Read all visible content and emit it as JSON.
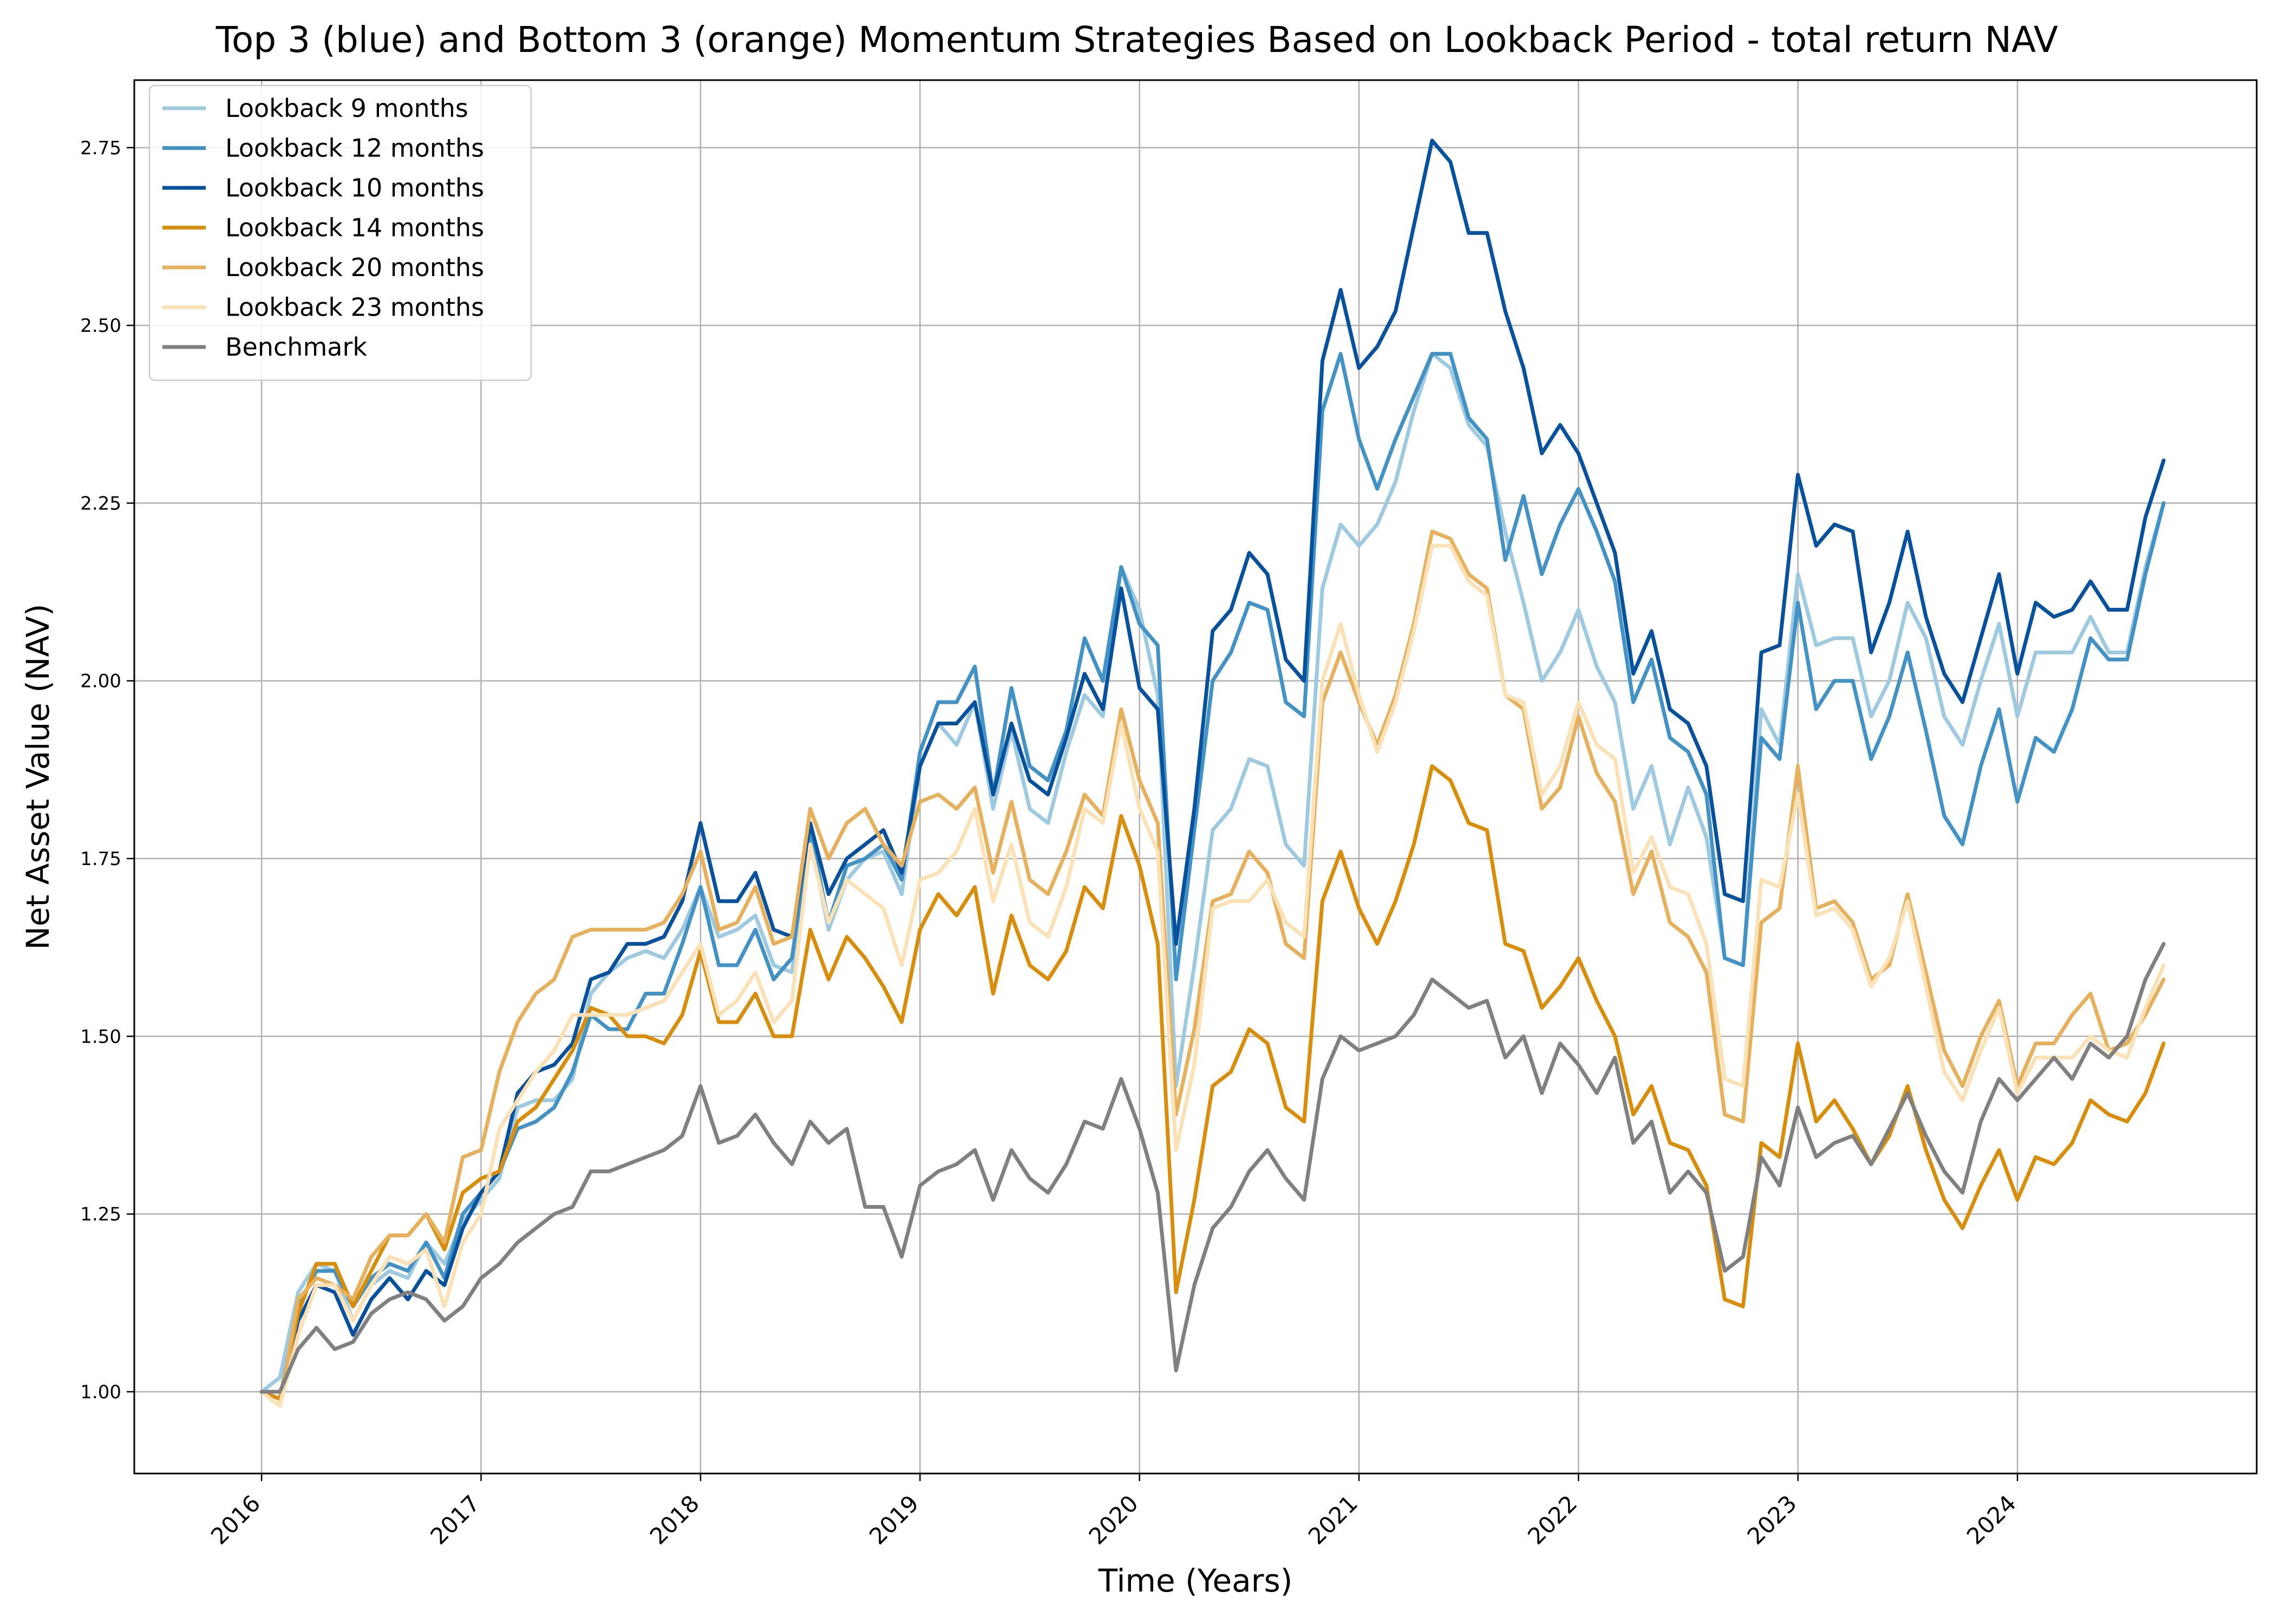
{
  "chart_data": {
    "type": "line",
    "title": "Top 3 (blue) and Bottom 3 (orange) Momentum Strategies Based on Lookback Period - total return NAV",
    "xlabel": "Time (Years)",
    "ylabel": "Net Asset Value (NAV)",
    "xlim": [
      2015.42,
      2025.09
    ],
    "ylim": [
      0.885,
      2.845
    ],
    "x_ticks": [
      2016,
      2017,
      2018,
      2019,
      2020,
      2021,
      2022,
      2023,
      2024
    ],
    "x_tick_labels": [
      "2016",
      "2017",
      "2018",
      "2019",
      "2020",
      "2021",
      "2022",
      "2023",
      "2024"
    ],
    "y_ticks": [
      1.0,
      1.25,
      1.5,
      1.75,
      2.0,
      2.25,
      2.5,
      2.75
    ],
    "y_tick_labels": [
      "1.00",
      "1.25",
      "1.50",
      "1.75",
      "2.00",
      "2.25",
      "2.50",
      "2.75"
    ],
    "grid": true,
    "legend_position": "upper-left",
    "x_start": 2016.0,
    "x_step": 0.08333,
    "series": [
      {
        "name": "Lookback 9 months",
        "color": "#9ecae1",
        "values": [
          1.0,
          1.02,
          1.14,
          1.18,
          1.17,
          1.1,
          1.15,
          1.17,
          1.16,
          1.21,
          1.18,
          1.24,
          1.27,
          1.3,
          1.4,
          1.41,
          1.41,
          1.44,
          1.56,
          1.59,
          1.61,
          1.62,
          1.61,
          1.65,
          1.71,
          1.64,
          1.65,
          1.67,
          1.6,
          1.59,
          1.78,
          1.65,
          1.72,
          1.75,
          1.76,
          1.7,
          1.88,
          1.94,
          1.91,
          1.97,
          1.82,
          1.93,
          1.82,
          1.8,
          1.9,
          1.98,
          1.95,
          2.16,
          2.1,
          1.98,
          1.43,
          1.6,
          1.79,
          1.82,
          1.89,
          1.88,
          1.77,
          1.74,
          2.13,
          2.22,
          2.19,
          2.22,
          2.28,
          2.38,
          2.46,
          2.44,
          2.36,
          2.33,
          2.21,
          2.11,
          2.0,
          2.04,
          2.1,
          2.02,
          1.97,
          1.82,
          1.88,
          1.77,
          1.85,
          1.78,
          1.61,
          1.6,
          1.96,
          1.91,
          2.15,
          2.05,
          2.06,
          2.06,
          1.95,
          2.0,
          2.11,
          2.06,
          1.95,
          1.91,
          2.0,
          2.08,
          1.95,
          2.04,
          2.04,
          2.04,
          2.09,
          2.04,
          2.04,
          2.16,
          2.25
        ]
      },
      {
        "name": "Lookback 12 months",
        "color": "#4292c6",
        "values": [
          1.0,
          0.99,
          1.12,
          1.17,
          1.17,
          1.12,
          1.16,
          1.18,
          1.17,
          1.21,
          1.16,
          1.25,
          1.28,
          1.31,
          1.37,
          1.38,
          1.4,
          1.45,
          1.53,
          1.51,
          1.51,
          1.56,
          1.56,
          1.63,
          1.71,
          1.6,
          1.6,
          1.65,
          1.58,
          1.61,
          1.79,
          1.66,
          1.74,
          1.75,
          1.77,
          1.72,
          1.9,
          1.97,
          1.97,
          2.02,
          1.84,
          1.99,
          1.88,
          1.86,
          1.93,
          2.06,
          2.0,
          2.16,
          2.08,
          2.05,
          1.58,
          1.79,
          2.0,
          2.04,
          2.11,
          2.1,
          1.97,
          1.95,
          2.38,
          2.46,
          2.34,
          2.27,
          2.34,
          2.4,
          2.46,
          2.46,
          2.37,
          2.34,
          2.17,
          2.26,
          2.15,
          2.22,
          2.27,
          2.21,
          2.14,
          1.97,
          2.03,
          1.92,
          1.9,
          1.84,
          1.61,
          1.6,
          1.92,
          1.89,
          2.11,
          1.96,
          2.0,
          2.0,
          1.89,
          1.95,
          2.04,
          1.93,
          1.81,
          1.77,
          1.88,
          1.96,
          1.83,
          1.92,
          1.9,
          1.96,
          2.06,
          2.03,
          2.03,
          2.15,
          2.25
        ]
      },
      {
        "name": "Lookback 10 months",
        "color": "#08519c",
        "values": [
          1.0,
          0.99,
          1.1,
          1.15,
          1.14,
          1.08,
          1.13,
          1.16,
          1.13,
          1.17,
          1.15,
          1.23,
          1.28,
          1.31,
          1.42,
          1.45,
          1.46,
          1.49,
          1.58,
          1.59,
          1.63,
          1.63,
          1.64,
          1.69,
          1.8,
          1.69,
          1.69,
          1.73,
          1.65,
          1.64,
          1.8,
          1.7,
          1.75,
          1.77,
          1.79,
          1.73,
          1.88,
          1.94,
          1.94,
          1.97,
          1.84,
          1.94,
          1.86,
          1.84,
          1.92,
          2.01,
          1.96,
          2.13,
          1.99,
          1.96,
          1.63,
          1.82,
          2.07,
          2.1,
          2.18,
          2.15,
          2.03,
          2.0,
          2.45,
          2.55,
          2.44,
          2.47,
          2.52,
          2.64,
          2.76,
          2.73,
          2.63,
          2.63,
          2.52,
          2.44,
          2.32,
          2.36,
          2.32,
          2.25,
          2.18,
          2.01,
          2.07,
          1.96,
          1.94,
          1.88,
          1.7,
          1.69,
          2.04,
          2.05,
          2.29,
          2.19,
          2.22,
          2.21,
          2.04,
          2.11,
          2.21,
          2.09,
          2.01,
          1.97,
          2.06,
          2.15,
          2.01,
          2.11,
          2.09,
          2.1,
          2.14,
          2.1,
          2.1,
          2.23,
          2.31
        ]
      },
      {
        "name": "Lookback 14 months",
        "color": "#d98e0b",
        "values": [
          1.0,
          0.99,
          1.11,
          1.18,
          1.18,
          1.12,
          1.17,
          1.22,
          1.22,
          1.25,
          1.2,
          1.28,
          1.3,
          1.31,
          1.38,
          1.4,
          1.44,
          1.48,
          1.54,
          1.53,
          1.5,
          1.5,
          1.49,
          1.53,
          1.62,
          1.52,
          1.52,
          1.56,
          1.5,
          1.5,
          1.65,
          1.58,
          1.64,
          1.61,
          1.57,
          1.52,
          1.65,
          1.7,
          1.67,
          1.71,
          1.56,
          1.67,
          1.6,
          1.58,
          1.62,
          1.71,
          1.68,
          1.81,
          1.74,
          1.63,
          1.14,
          1.27,
          1.43,
          1.45,
          1.51,
          1.49,
          1.4,
          1.38,
          1.69,
          1.76,
          1.68,
          1.63,
          1.69,
          1.77,
          1.88,
          1.86,
          1.8,
          1.79,
          1.63,
          1.62,
          1.54,
          1.57,
          1.61,
          1.55,
          1.5,
          1.39,
          1.43,
          1.35,
          1.34,
          1.29,
          1.13,
          1.12,
          1.35,
          1.33,
          1.49,
          1.38,
          1.41,
          1.37,
          1.32,
          1.36,
          1.43,
          1.34,
          1.27,
          1.23,
          1.29,
          1.34,
          1.27,
          1.33,
          1.32,
          1.35,
          1.41,
          1.39,
          1.38,
          1.42,
          1.49
        ]
      },
      {
        "name": "Lookback 20 months",
        "color": "#e6b05c",
        "values": [
          1.0,
          0.98,
          1.13,
          1.16,
          1.15,
          1.13,
          1.19,
          1.22,
          1.22,
          1.25,
          1.21,
          1.33,
          1.34,
          1.45,
          1.52,
          1.56,
          1.58,
          1.64,
          1.65,
          1.65,
          1.65,
          1.65,
          1.66,
          1.7,
          1.76,
          1.65,
          1.66,
          1.71,
          1.63,
          1.64,
          1.82,
          1.75,
          1.8,
          1.82,
          1.77,
          1.74,
          1.83,
          1.84,
          1.82,
          1.85,
          1.73,
          1.83,
          1.72,
          1.7,
          1.76,
          1.84,
          1.81,
          1.96,
          1.86,
          1.8,
          1.39,
          1.51,
          1.69,
          1.7,
          1.76,
          1.73,
          1.63,
          1.61,
          1.97,
          2.04,
          1.97,
          1.91,
          1.98,
          2.08,
          2.21,
          2.2,
          2.15,
          2.13,
          1.98,
          1.96,
          1.82,
          1.85,
          1.95,
          1.87,
          1.83,
          1.7,
          1.76,
          1.66,
          1.64,
          1.59,
          1.39,
          1.38,
          1.66,
          1.68,
          1.88,
          1.68,
          1.69,
          1.66,
          1.58,
          1.6,
          1.7,
          1.59,
          1.48,
          1.43,
          1.5,
          1.55,
          1.43,
          1.49,
          1.49,
          1.53,
          1.56,
          1.48,
          1.49,
          1.53,
          1.58
        ]
      },
      {
        "name": "Lookback 23 months",
        "color": "#fbe1b6",
        "values": [
          1.0,
          0.98,
          1.08,
          1.15,
          1.15,
          1.1,
          1.15,
          1.19,
          1.18,
          1.2,
          1.12,
          1.21,
          1.25,
          1.37,
          1.41,
          1.45,
          1.48,
          1.53,
          1.53,
          1.53,
          1.53,
          1.54,
          1.55,
          1.59,
          1.63,
          1.53,
          1.55,
          1.59,
          1.52,
          1.55,
          1.77,
          1.66,
          1.72,
          1.7,
          1.68,
          1.6,
          1.72,
          1.73,
          1.76,
          1.82,
          1.69,
          1.77,
          1.66,
          1.64,
          1.71,
          1.82,
          1.8,
          1.94,
          1.82,
          1.76,
          1.34,
          1.46,
          1.68,
          1.69,
          1.69,
          1.72,
          1.66,
          1.64,
          2.0,
          2.08,
          1.98,
          1.9,
          1.97,
          2.07,
          2.19,
          2.19,
          2.14,
          2.12,
          1.98,
          1.97,
          1.84,
          1.88,
          1.97,
          1.91,
          1.89,
          1.73,
          1.78,
          1.71,
          1.7,
          1.63,
          1.44,
          1.43,
          1.72,
          1.71,
          1.84,
          1.67,
          1.68,
          1.65,
          1.57,
          1.61,
          1.69,
          1.57,
          1.45,
          1.41,
          1.48,
          1.54,
          1.42,
          1.47,
          1.47,
          1.47,
          1.5,
          1.48,
          1.47,
          1.54,
          1.6
        ]
      },
      {
        "name": "Benchmark",
        "color": "#808080",
        "values": [
          1.0,
          1.0,
          1.06,
          1.09,
          1.06,
          1.07,
          1.11,
          1.13,
          1.14,
          1.13,
          1.1,
          1.12,
          1.16,
          1.18,
          1.21,
          1.23,
          1.25,
          1.26,
          1.31,
          1.31,
          1.32,
          1.33,
          1.34,
          1.36,
          1.43,
          1.35,
          1.36,
          1.39,
          1.35,
          1.32,
          1.38,
          1.35,
          1.37,
          1.26,
          1.26,
          1.19,
          1.29,
          1.31,
          1.32,
          1.34,
          1.27,
          1.34,
          1.3,
          1.28,
          1.32,
          1.38,
          1.37,
          1.44,
          1.37,
          1.28,
          1.03,
          1.15,
          1.23,
          1.26,
          1.31,
          1.34,
          1.3,
          1.27,
          1.44,
          1.5,
          1.48,
          1.49,
          1.5,
          1.53,
          1.58,
          1.56,
          1.54,
          1.55,
          1.47,
          1.5,
          1.42,
          1.49,
          1.46,
          1.42,
          1.47,
          1.35,
          1.38,
          1.28,
          1.31,
          1.28,
          1.17,
          1.19,
          1.33,
          1.29,
          1.4,
          1.33,
          1.35,
          1.36,
          1.32,
          1.37,
          1.42,
          1.36,
          1.31,
          1.28,
          1.38,
          1.44,
          1.41,
          1.44,
          1.47,
          1.44,
          1.49,
          1.47,
          1.5,
          1.58,
          1.63
        ]
      }
    ]
  }
}
